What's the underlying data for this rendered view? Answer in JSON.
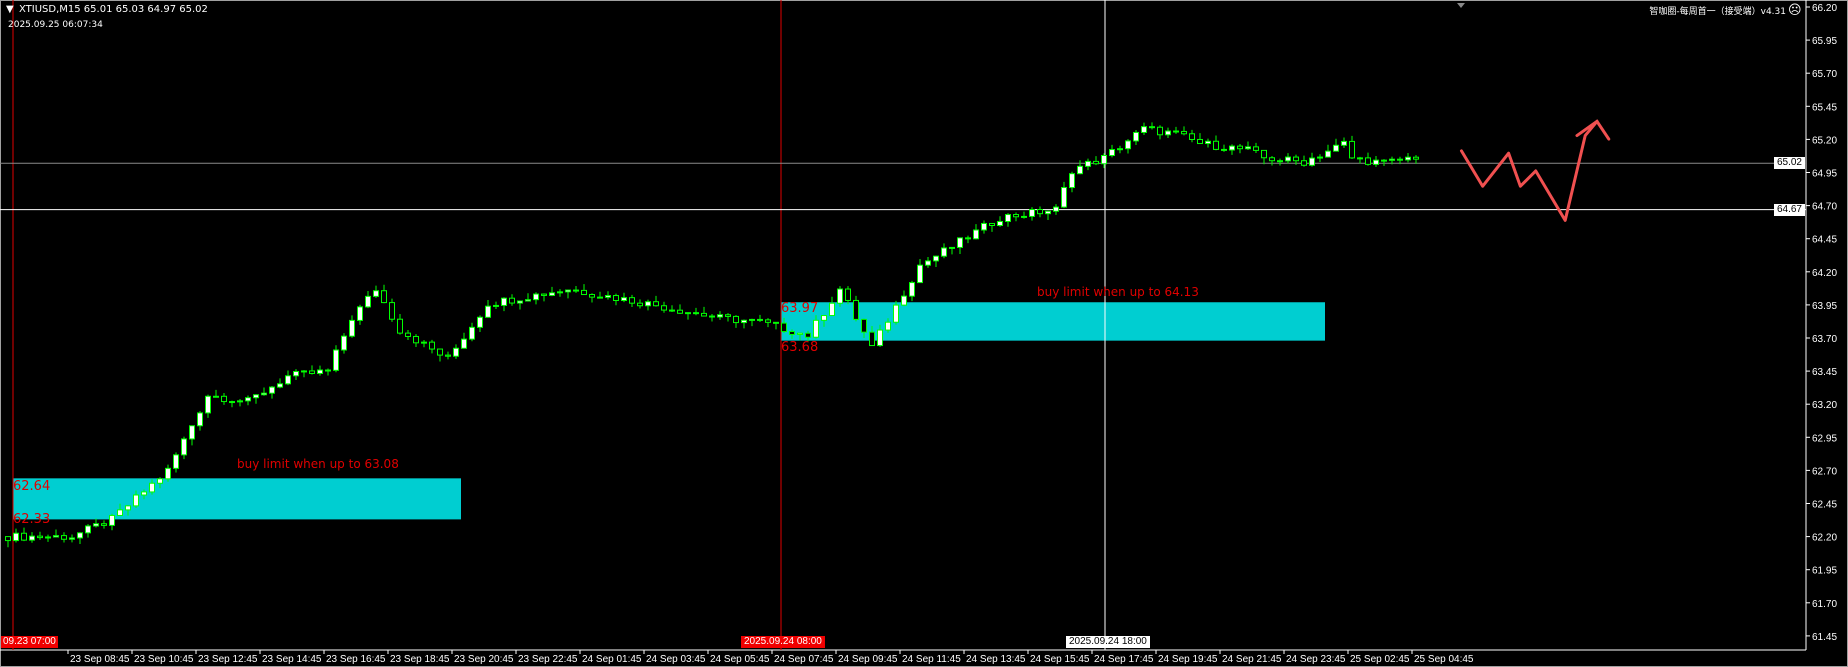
{
  "header": {
    "symbol_line": "XTIUSD,M15  65.01 65.03 64.97 65.02",
    "server_time": "2025.09.25 06:07:34",
    "indicator_label": "智咖圈-每周首一（接受端）v4.31",
    "status_icon": "frown-face-icon",
    "menu_icon": "triangle-down-icon"
  },
  "colors": {
    "background": "#000000",
    "candle_wick": "#00ff00",
    "bull_body": "#ffffff",
    "bear_body": "#000000",
    "zone_fill": "#00ced1",
    "zone_text": "#e00000",
    "drawing": "#f05050"
  },
  "chart_data": {
    "type": "candlestick",
    "symbol": "XTIUSD",
    "timeframe": "M15",
    "ylim": [
      61.45,
      66.2
    ],
    "y_ticks": [
      "66.20",
      "65.95",
      "65.70",
      "65.45",
      "65.20",
      "64.95",
      "64.70",
      "64.45",
      "64.20",
      "63.95",
      "63.70",
      "63.45",
      "63.20",
      "62.95",
      "62.70",
      "62.45",
      "62.20",
      "61.95",
      "61.70",
      "61.45"
    ],
    "x_ticks": [
      "23 Sep 08:45",
      "23 Sep 10:45",
      "23 Sep 12:45",
      "23 Sep 14:45",
      "23 Sep 16:45",
      "23 Sep 18:45",
      "23 Sep 20:45",
      "23 Sep 22:45",
      "24 Sep 01:45",
      "24 Sep 03:45",
      "24 Sep 05:45",
      "24 Sep 07:45",
      "24 Sep 09:45",
      "24 Sep 11:45",
      "24 Sep 13:45",
      "24 Sep 15:45",
      "24 Sep 17:45",
      "24 Sep 19:45",
      "24 Sep 21:45",
      "24 Sep 23:45",
      "25 Sep 02:45",
      "25 Sep 04:45"
    ],
    "price_path": [
      [
        0,
        62.2
      ],
      [
        8,
        62.2
      ],
      [
        13,
        62.33
      ],
      [
        20,
        62.7
      ],
      [
        25,
        63.27
      ],
      [
        30,
        63.22
      ],
      [
        35,
        63.41
      ],
      [
        40,
        63.45
      ],
      [
        43,
        63.85
      ],
      [
        46,
        64.07
      ],
      [
        49,
        63.76
      ],
      [
        55,
        63.54
      ],
      [
        60,
        63.96
      ],
      [
        70,
        64.07
      ],
      [
        80,
        63.96
      ],
      [
        89,
        63.85
      ],
      [
        94,
        63.82
      ],
      [
        100,
        63.72
      ],
      [
        104,
        64.07
      ],
      [
        108,
        63.63
      ],
      [
        114,
        64.25
      ],
      [
        118,
        64.39
      ],
      [
        124,
        64.61
      ],
      [
        131,
        64.67
      ],
      [
        133,
        64.97
      ],
      [
        137,
        65.06
      ],
      [
        142,
        65.28
      ],
      [
        146,
        65.24
      ],
      [
        149,
        65.17
      ],
      [
        155,
        65.12
      ],
      [
        157,
        65.06
      ],
      [
        162,
        65.03
      ],
      [
        167,
        65.17
      ],
      [
        168,
        65.06
      ],
      [
        172,
        65.02
      ],
      [
        176,
        65.07
      ]
    ],
    "current_bid": "65.02",
    "crosshair_price": "64.67",
    "time_markers": {
      "left": "09.23 07:00",
      "red": "2025.09.24 08:00",
      "white": "2025.09.24 18:00"
    },
    "zones": [
      {
        "top": "62.64",
        "bottom": "62.33",
        "note": "buy limit when up to 63.08"
      },
      {
        "top": "63.97",
        "bottom": "63.68",
        "note": "buy limit when up to 64.13"
      }
    ]
  }
}
